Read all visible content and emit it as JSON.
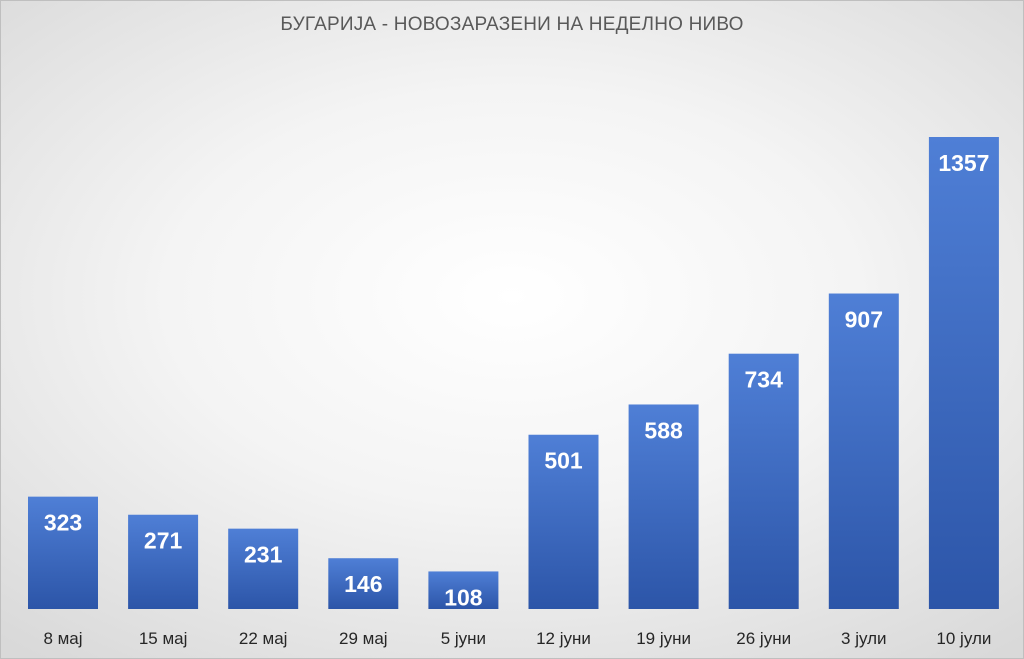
{
  "chart_data": {
    "type": "bar",
    "title": "БУГАРИЈА - НОВОЗАРАЗЕНИ НА НЕДЕЛНО НИВО",
    "xlabel": "",
    "ylabel": "",
    "categories": [
      "8 мај",
      "15 мај",
      "22 мај",
      "29 мај",
      "5 јуни",
      "12 јуни",
      "19 јуни",
      "26 јуни",
      "3 јули",
      "10 јули"
    ],
    "values": [
      323,
      271,
      231,
      146,
      108,
      501,
      588,
      734,
      907,
      1357
    ],
    "ylim": [
      0,
      1500
    ],
    "grid": false,
    "legend": "none",
    "colors": {
      "bar_top": "#4f7fd6",
      "bar_bottom": "#2c55a8",
      "label": "#ffffff"
    }
  }
}
